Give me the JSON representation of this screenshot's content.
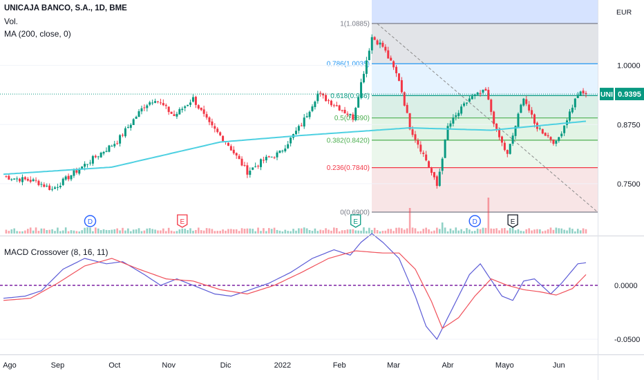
{
  "header": {
    "symbol_line": "UNICAJA BANCO, S.A., 1D, BME",
    "vol_label": "Vol.",
    "ma_label": "MA (200, close, 0)",
    "macd_label": "MACD Crossover (8, 16, 11)",
    "currency": "EUR"
  },
  "price_badge": {
    "ticker": "UNI",
    "value": "0.9395",
    "color": "#089981"
  },
  "colors": {
    "up": "#089981",
    "down": "#f23645",
    "ma": "#4dd0e1",
    "macd": "#5b5bd6",
    "signal": "#f0505a",
    "zero": "#7b1fa2"
  },
  "chart_data": [
    {
      "type": "candlestick",
      "title": "UNICAJA BANCO, S.A., 1D, BME",
      "y_unit": "EUR",
      "y_ticks": [
        1.0,
        0.875,
        0.75
      ],
      "x_tick_labels": [
        "Ago",
        "Sep",
        "Oct",
        "Nov",
        "Dic",
        "2022",
        "Feb",
        "Mar",
        "Abr",
        "Mayo",
        "Jun"
      ],
      "last_price": 0.9395,
      "anchors": [
        {
          "i": 0,
          "c": 0.765
        },
        {
          "i": 12,
          "c": 0.755
        },
        {
          "i": 18,
          "c": 0.738
        },
        {
          "i": 30,
          "c": 0.79
        },
        {
          "i": 42,
          "c": 0.84
        },
        {
          "i": 52,
          "c": 0.915
        },
        {
          "i": 56,
          "c": 0.93
        },
        {
          "i": 63,
          "c": 0.893
        },
        {
          "i": 70,
          "c": 0.93
        },
        {
          "i": 76,
          "c": 0.875
        },
        {
          "i": 82,
          "c": 0.84
        },
        {
          "i": 90,
          "c": 0.775
        },
        {
          "i": 96,
          "c": 0.8
        },
        {
          "i": 102,
          "c": 0.815
        },
        {
          "i": 110,
          "c": 0.875
        },
        {
          "i": 116,
          "c": 0.94
        },
        {
          "i": 124,
          "c": 0.91
        },
        {
          "i": 129,
          "c": 0.89
        },
        {
          "i": 136,
          "c": 1.06
        },
        {
          "i": 140,
          "c": 1.04
        },
        {
          "i": 146,
          "c": 0.97
        },
        {
          "i": 150,
          "c": 0.87
        },
        {
          "i": 156,
          "c": 0.8
        },
        {
          "i": 160,
          "c": 0.745
        },
        {
          "i": 164,
          "c": 0.87
        },
        {
          "i": 172,
          "c": 0.93
        },
        {
          "i": 178,
          "c": 0.945
        },
        {
          "i": 182,
          "c": 0.86
        },
        {
          "i": 186,
          "c": 0.81
        },
        {
          "i": 192,
          "c": 0.935
        },
        {
          "i": 196,
          "c": 0.875
        },
        {
          "i": 204,
          "c": 0.835
        },
        {
          "i": 212,
          "c": 0.94
        },
        {
          "i": 215,
          "c": 0.9395
        }
      ],
      "ma200": [
        {
          "i": 0,
          "v": 0.77
        },
        {
          "i": 40,
          "v": 0.785
        },
        {
          "i": 80,
          "v": 0.838
        },
        {
          "i": 110,
          "v": 0.852
        },
        {
          "i": 150,
          "v": 0.868
        },
        {
          "i": 180,
          "v": 0.863
        },
        {
          "i": 215,
          "v": 0.882
        }
      ],
      "fibonacci": {
        "high": 1.0885,
        "low": 0.69,
        "levels": [
          {
            "ratio": "1",
            "value": 1.0885,
            "label": "1(1.0885)",
            "color": "#787b86"
          },
          {
            "ratio": "0.786",
            "value": 1.0035,
            "label": "0.786(1.0035)",
            "color": "#2196f3"
          },
          {
            "ratio": "0.618",
            "value": 0.9361,
            "label": "0.618(0.936)",
            "color": "#089981"
          },
          {
            "ratio": "0.5",
            "value": 0.889,
            "label": "0.5(0.8890)",
            "color": "#4caf50"
          },
          {
            "ratio": "0.382",
            "value": 0.842,
            "label": "0.382(0.8420)",
            "color": "#4caf50"
          },
          {
            "ratio": "0.236",
            "value": 0.784,
            "label": "0.236(0.7840)",
            "color": "#f23645"
          },
          {
            "ratio": "0",
            "value": 0.69,
            "label": "0(0.6900)",
            "color": "#787b86"
          }
        ]
      },
      "events": [
        {
          "label": "D",
          "i": 32,
          "kind": "dividend",
          "color": "#2962ff"
        },
        {
          "label": "E",
          "i": 66,
          "kind": "earnings",
          "color": "#f23645"
        },
        {
          "label": "E",
          "i": 130,
          "kind": "earnings",
          "color": "#089981"
        },
        {
          "label": "D",
          "i": 174,
          "kind": "dividend",
          "color": "#2962ff"
        },
        {
          "label": "E",
          "i": 188,
          "kind": "earnings",
          "color": "#131722"
        }
      ]
    },
    {
      "type": "line",
      "title": "MACD Crossover (8, 16, 11)",
      "y_ticks": [
        0.0,
        -0.05
      ],
      "zero_line": 0,
      "series": [
        {
          "name": "MACD",
          "points": [
            {
              "i": 0,
              "v": -0.012
            },
            {
              "i": 8,
              "v": -0.01
            },
            {
              "i": 14,
              "v": -0.005
            },
            {
              "i": 22,
              "v": 0.015
            },
            {
              "i": 30,
              "v": 0.025
            },
            {
              "i": 38,
              "v": 0.02
            },
            {
              "i": 44,
              "v": 0.022
            },
            {
              "i": 52,
              "v": 0.01
            },
            {
              "i": 58,
              "v": 0.0
            },
            {
              "i": 64,
              "v": 0.006
            },
            {
              "i": 70,
              "v": 0.0
            },
            {
              "i": 78,
              "v": -0.008
            },
            {
              "i": 84,
              "v": -0.01
            },
            {
              "i": 90,
              "v": -0.005
            },
            {
              "i": 98,
              "v": 0.002
            },
            {
              "i": 106,
              "v": 0.012
            },
            {
              "i": 114,
              "v": 0.025
            },
            {
              "i": 122,
              "v": 0.033
            },
            {
              "i": 128,
              "v": 0.028
            },
            {
              "i": 132,
              "v": 0.04
            },
            {
              "i": 136,
              "v": 0.048
            },
            {
              "i": 140,
              "v": 0.04
            },
            {
              "i": 146,
              "v": 0.025
            },
            {
              "i": 152,
              "v": -0.01
            },
            {
              "i": 156,
              "v": -0.038
            },
            {
              "i": 160,
              "v": -0.05
            },
            {
              "i": 166,
              "v": -0.02
            },
            {
              "i": 172,
              "v": 0.01
            },
            {
              "i": 176,
              "v": 0.02
            },
            {
              "i": 180,
              "v": 0.005
            },
            {
              "i": 184,
              "v": -0.01
            },
            {
              "i": 188,
              "v": -0.014
            },
            {
              "i": 192,
              "v": 0.004
            },
            {
              "i": 196,
              "v": 0.006
            },
            {
              "i": 202,
              "v": -0.008
            },
            {
              "i": 206,
              "v": 0.002
            },
            {
              "i": 212,
              "v": 0.02
            },
            {
              "i": 215,
              "v": 0.021
            }
          ]
        },
        {
          "name": "Signal",
          "points": [
            {
              "i": 0,
              "v": -0.014
            },
            {
              "i": 10,
              "v": -0.012
            },
            {
              "i": 20,
              "v": 0.002
            },
            {
              "i": 30,
              "v": 0.018
            },
            {
              "i": 40,
              "v": 0.025
            },
            {
              "i": 50,
              "v": 0.015
            },
            {
              "i": 60,
              "v": 0.006
            },
            {
              "i": 70,
              "v": 0.004
            },
            {
              "i": 80,
              "v": -0.004
            },
            {
              "i": 90,
              "v": -0.008
            },
            {
              "i": 100,
              "v": 0.0
            },
            {
              "i": 110,
              "v": 0.012
            },
            {
              "i": 120,
              "v": 0.025
            },
            {
              "i": 130,
              "v": 0.032
            },
            {
              "i": 140,
              "v": 0.03
            },
            {
              "i": 146,
              "v": 0.03
            },
            {
              "i": 152,
              "v": 0.015
            },
            {
              "i": 158,
              "v": -0.015
            },
            {
              "i": 162,
              "v": -0.04
            },
            {
              "i": 168,
              "v": -0.03
            },
            {
              "i": 174,
              "v": -0.01
            },
            {
              "i": 180,
              "v": 0.006
            },
            {
              "i": 186,
              "v": 0.0
            },
            {
              "i": 192,
              "v": -0.004
            },
            {
              "i": 198,
              "v": -0.006
            },
            {
              "i": 204,
              "v": -0.009
            },
            {
              "i": 210,
              "v": -0.003
            },
            {
              "i": 215,
              "v": 0.01
            }
          ]
        }
      ]
    }
  ]
}
